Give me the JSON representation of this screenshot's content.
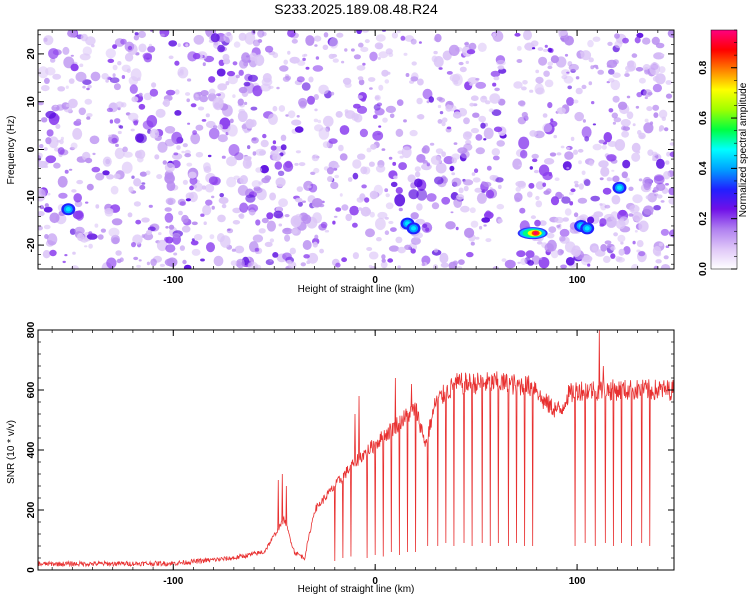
{
  "title": "S233.2025.189.08.48.R24",
  "chart_data": [
    {
      "type": "heatmap",
      "xlabel": "Height of straight line (km)",
      "ylabel": "Frequency (Hz)",
      "xlim": [
        -167,
        148
      ],
      "ylim": [
        -25,
        25
      ],
      "x_ticks": [
        "-100",
        "0",
        "100"
      ],
      "y_ticks": [
        "-20",
        "-10",
        "0",
        "10",
        "20"
      ],
      "colorbar": {
        "label": "Normalized spectral amplitude",
        "range": [
          0,
          0.95
        ],
        "ticks": [
          "0.0",
          "0.2",
          "0.4",
          "0.6",
          "0.8"
        ],
        "colors": [
          "#ffffff",
          "#e0c8f8",
          "#b080f0",
          "#7010e8",
          "#2020ff",
          "#00a0ff",
          "#00ffff",
          "#00ff40",
          "#a0ff00",
          "#ffff00",
          "#ff8000",
          "#ff0000",
          "#ff0080"
        ]
      },
      "hotspots": [
        {
          "x": -152,
          "y": -12.5,
          "value": 0.2
        },
        {
          "x": 16,
          "y": -15.5,
          "value": 0.25
        },
        {
          "x": 19,
          "y": -16.5,
          "value": 0.3
        },
        {
          "x": 78,
          "y": -17.5,
          "value": 0.9
        },
        {
          "x": 102,
          "y": -16,
          "value": 0.2
        },
        {
          "x": 105,
          "y": -16.5,
          "value": 0.22
        },
        {
          "x": 121,
          "y": -8,
          "value": 0.2
        }
      ]
    },
    {
      "type": "line",
      "xlabel": "Height of straight line (km)",
      "ylabel": "SNR (10 * v/v)",
      "xlim": [
        -167,
        148
      ],
      "ylim": [
        0,
        800
      ],
      "x_ticks": [
        "-100",
        "0",
        "100"
      ],
      "y_ticks": [
        "0",
        "200",
        "400",
        "600",
        "800"
      ],
      "line_color": "#e83030",
      "baseline_profile": [
        {
          "x": -167,
          "y": 20
        },
        {
          "x": -100,
          "y": 22
        },
        {
          "x": -70,
          "y": 40
        },
        {
          "x": -55,
          "y": 60
        },
        {
          "x": -45,
          "y": 170
        },
        {
          "x": -40,
          "y": 60
        },
        {
          "x": -35,
          "y": 40
        },
        {
          "x": -30,
          "y": 200
        },
        {
          "x": -20,
          "y": 280
        },
        {
          "x": -10,
          "y": 360
        },
        {
          "x": 0,
          "y": 420
        },
        {
          "x": 10,
          "y": 480
        },
        {
          "x": 20,
          "y": 540
        },
        {
          "x": 25,
          "y": 420
        },
        {
          "x": 30,
          "y": 560
        },
        {
          "x": 40,
          "y": 620
        },
        {
          "x": 60,
          "y": 625
        },
        {
          "x": 80,
          "y": 610
        },
        {
          "x": 82,
          "y": 570
        },
        {
          "x": 88,
          "y": 540
        },
        {
          "x": 92,
          "y": 530
        },
        {
          "x": 95,
          "y": 580
        },
        {
          "x": 100,
          "y": 600
        },
        {
          "x": 148,
          "y": 600
        }
      ],
      "dips": [
        {
          "x": -20,
          "y": 30
        },
        {
          "x": -16,
          "y": 40
        },
        {
          "x": -12,
          "y": 45
        },
        {
          "x": -8,
          "y": 50
        },
        {
          "x": -4,
          "y": 40
        },
        {
          "x": 0,
          "y": 50
        },
        {
          "x": 4,
          "y": 45
        },
        {
          "x": 8,
          "y": 60
        },
        {
          "x": 12,
          "y": 50
        },
        {
          "x": 16,
          "y": 60
        },
        {
          "x": 20,
          "y": 60
        },
        {
          "x": 26,
          "y": 80
        },
        {
          "x": 31,
          "y": 80
        },
        {
          "x": 35,
          "y": 90
        },
        {
          "x": 39,
          "y": 80
        },
        {
          "x": 44,
          "y": 90
        },
        {
          "x": 48,
          "y": 80
        },
        {
          "x": 53,
          "y": 90
        },
        {
          "x": 57,
          "y": 80
        },
        {
          "x": 61,
          "y": 90
        },
        {
          "x": 66,
          "y": 80
        },
        {
          "x": 70,
          "y": 90
        },
        {
          "x": 74,
          "y": 80
        },
        {
          "x": 78,
          "y": 80
        },
        {
          "x": 99,
          "y": 80
        },
        {
          "x": 104,
          "y": 90
        },
        {
          "x": 109,
          "y": 80
        },
        {
          "x": 114,
          "y": 90
        },
        {
          "x": 118,
          "y": 80
        },
        {
          "x": 122,
          "y": 90
        },
        {
          "x": 127,
          "y": 80
        },
        {
          "x": 132,
          "y": 90
        },
        {
          "x": 136,
          "y": 80
        }
      ],
      "spikes": [
        {
          "x": -48,
          "y": 300
        },
        {
          "x": -46,
          "y": 320
        },
        {
          "x": -44,
          "y": 280
        },
        {
          "x": -10,
          "y": 520
        },
        {
          "x": -8,
          "y": 580
        },
        {
          "x": 10,
          "y": 640
        },
        {
          "x": 18,
          "y": 620
        },
        {
          "x": 111,
          "y": 800
        },
        {
          "x": 113,
          "y": 680
        }
      ]
    }
  ]
}
